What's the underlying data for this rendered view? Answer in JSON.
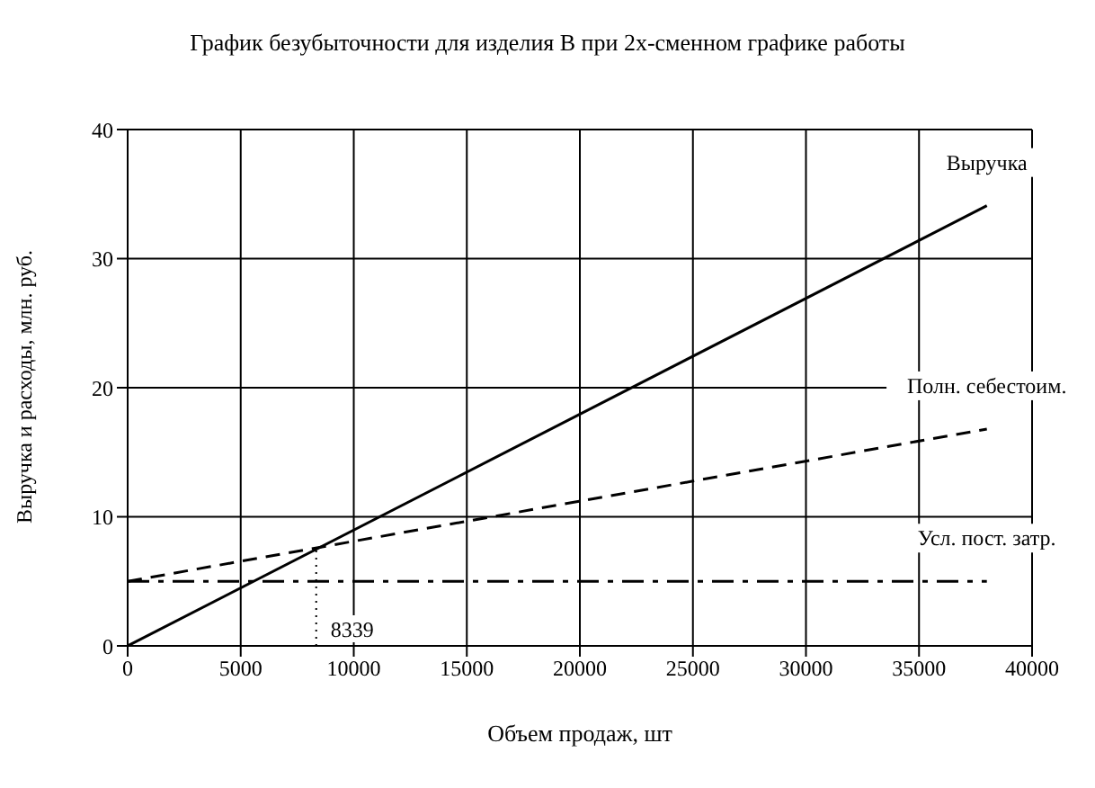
{
  "chart_data": {
    "type": "line",
    "title": "График безубыточности для изделия В при 2х-сменном графике работы",
    "xlabel": "Объем продаж, шт",
    "ylabel": "Выручка и расходы, млн. руб.",
    "x": [
      0,
      38000
    ],
    "series": [
      {
        "name": "Выручка",
        "color": "#000000",
        "values": [
          0,
          34.1
        ],
        "line_style": "solid"
      },
      {
        "name": "Полн. себестоим.",
        "color": "#000000",
        "values": [
          5,
          16.8
        ],
        "line_style": "dashed"
      },
      {
        "name": "Усл. пост. затр.",
        "color": "#000000",
        "values": [
          5,
          5
        ],
        "line_style": "dashdot"
      }
    ],
    "xlim": [
      0,
      40000
    ],
    "xticks": [
      0,
      5000,
      10000,
      15000,
      20000,
      25000,
      30000,
      35000,
      40000
    ],
    "ylim": [
      0,
      40
    ],
    "yticks": [
      0,
      10,
      20,
      30,
      40
    ],
    "ref_lines": [
      {
        "axis": "x",
        "value": 8339,
        "label": "8339",
        "line_style": "dotted",
        "color": "#000000"
      }
    ],
    "grid": true,
    "marker": "none"
  }
}
